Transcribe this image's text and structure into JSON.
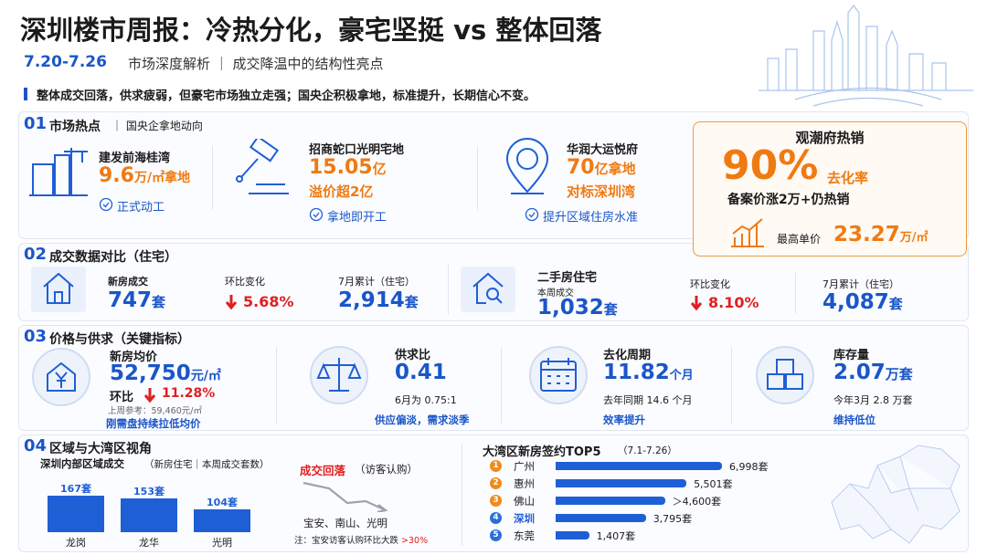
{
  "header": {
    "title": "深圳楼市周报：冷热分化，豪宅坚挺 vs 整体回落",
    "date": "7.20-7.26",
    "subtitle": "市场深度解析 ｜ 成交降温中的结构性亮点",
    "summary": "整体成交回落，供求疲弱，但豪宅市场独立走强；国央企积极拿地，标准提升，长期信心不变。"
  },
  "section1": {
    "number": "01",
    "title": "市场热点",
    "subtitle": "｜ 国央企拿地动向",
    "items": [
      {
        "name": "建发前海桂湾",
        "value": "9.6",
        "unit": "万/㎡拿地",
        "note": "正式动工"
      },
      {
        "name": "招商蛇口光明宅地",
        "value": "15.05",
        "unit": "亿",
        "detail": "溢价超2亿",
        "note": "拿地即开工"
      },
      {
        "name": "华润大运悦府",
        "value": "70",
        "unit": "亿拿地",
        "detail": "对标深圳湾",
        "note": "提升区域住房水准"
      }
    ],
    "highlight": {
      "title": "观潮府热销",
      "value": "90%",
      "label": "去化率",
      "detail": "备案价涨2万+仍热销",
      "price_label": "最高单价",
      "price": "23.27",
      "price_unit": "万/㎡"
    }
  },
  "section2": {
    "number": "02",
    "title": "成交数据对比（住宅）",
    "new": {
      "label": "新房成交",
      "value": "747",
      "unit": "套",
      "change_label": "环比变化",
      "change": "5.68%",
      "total_label": "7月累计（住宅）",
      "total": "2,914",
      "total_unit": "套"
    },
    "second": {
      "label": "二手房住宅",
      "sub": "本周成交",
      "value": "1,032",
      "unit": "套",
      "change_label": "环比变化",
      "change": "8.10%",
      "total_label": "7月累计（住宅）",
      "total": "4,087",
      "total_unit": "套"
    }
  },
  "section3": {
    "number": "03",
    "title": "价格与供求（关键指标）",
    "price": {
      "label": "新房均价",
      "value": "52,750",
      "unit": "元/㎡",
      "change_label": "环比",
      "change": "11.28%",
      "ref": "上周参考：59,460元/㎡",
      "note": "刚需盘持续拉低均价"
    },
    "ratio": {
      "label": "供求比",
      "value": "0.41",
      "ref": "6月为 0.75:1",
      "note": "供应偏淡，需求淡季"
    },
    "cycle": {
      "label": "去化周期",
      "value": "11.82",
      "unit": "个月",
      "ref": "去年同期 14.6 个月",
      "note": "效率提升"
    },
    "stock": {
      "label": "库存量",
      "value": "2.07",
      "unit": "万套",
      "ref": "今年3月 2.8 万套",
      "note": "维持低位"
    }
  },
  "section4": {
    "number": "04",
    "title": "区域与大湾区视角",
    "trend": {
      "title": "成交回落",
      "sub": "（访客认购）",
      "areas": "宝安、南山、光明",
      "note": "注：宝安访客认购环比大跌",
      "note_value": ">30%"
    }
  },
  "charts": [
    {
      "type": "bar",
      "title": "深圳内部区域成交",
      "subtitle": "（新房住宅｜本周成交套数）",
      "categories": [
        "龙岗",
        "龙华",
        "光明"
      ],
      "values": [
        167,
        153,
        104
      ],
      "value_labels": [
        "167套",
        "153套",
        "104套"
      ],
      "color": "#1f5fd6"
    },
    {
      "type": "hbar",
      "title": "大湾区新房签约TOP5",
      "subtitle": "（7.1-7.26）",
      "ranks": [
        "1",
        "2",
        "3",
        "4",
        "5"
      ],
      "categories": [
        "广州",
        "惠州",
        "佛山",
        "深圳",
        "东莞"
      ],
      "values": [
        6998,
        5501,
        4600,
        3795,
        1407
      ],
      "value_labels": [
        "6,998套",
        "5,501套",
        "＞4,600套",
        "3,795套",
        "1,407套"
      ],
      "color": "#1f5fd6",
      "rank_colors": [
        "#f08a1c",
        "#f08a1c",
        "#f08a1c",
        "#2a6fdb",
        "#2a6fdb"
      ],
      "highlight": "深圳"
    }
  ]
}
